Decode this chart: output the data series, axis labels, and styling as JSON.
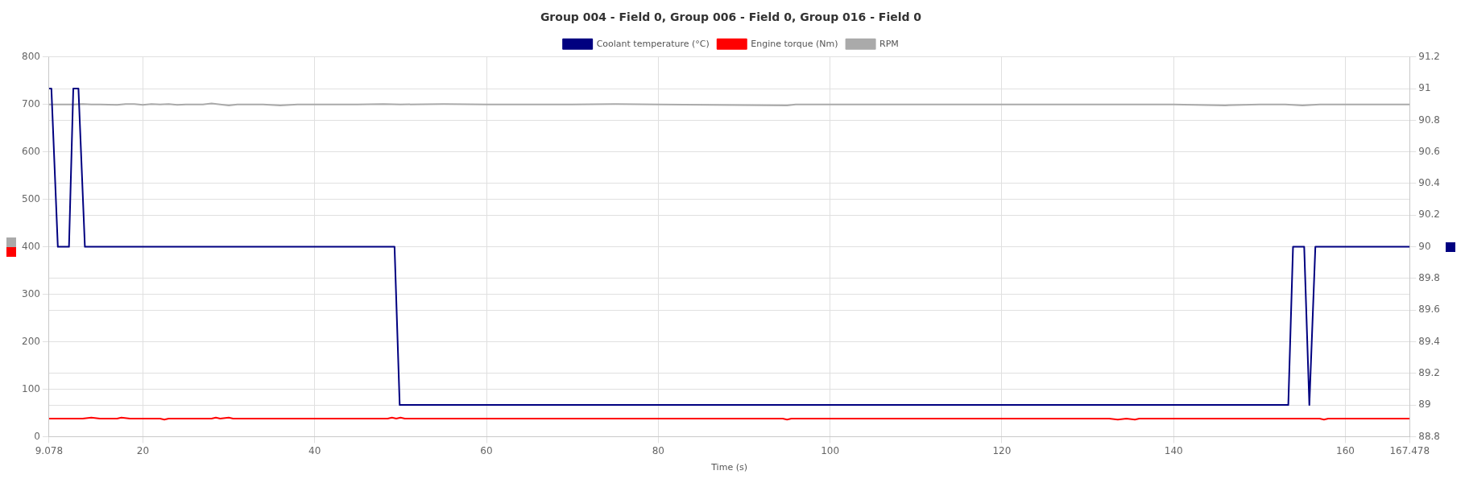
{
  "chart_data": {
    "type": "line",
    "title": "Group 004 - Field 0, Group 006 - Field 0, Group 016 - Field 0",
    "xlabel": "Time (s)",
    "legend": "top",
    "grid": true,
    "marker": "none",
    "line_style": "solid",
    "xlim": [
      9.078,
      167.478
    ],
    "xticks": [
      9.078,
      20,
      40,
      60,
      80,
      100,
      120,
      140,
      160,
      167.478
    ],
    "ylim": [
      0,
      800
    ],
    "yticks": [
      0,
      100,
      200,
      300,
      400,
      500,
      600,
      700,
      800
    ],
    "y2lim": [
      88.8,
      91.2
    ],
    "y2ticks": [
      88.8,
      89,
      89.2,
      89.4,
      89.6,
      89.8,
      90,
      90.2,
      90.4,
      90.6,
      90.8,
      91,
      91.2
    ],
    "series": [
      {
        "name": "Coolant temperature (°C)",
        "color": "#000080",
        "axis": "y2",
        "x": [
          9.078,
          9.35,
          10.1,
          11.4,
          11.9,
          12.5,
          13.25,
          49.3,
          49.9,
          153.35,
          153.9,
          155.2,
          155.8,
          156.5,
          167.478
        ],
        "values": [
          91,
          91,
          90,
          90,
          91,
          91,
          90,
          90,
          89,
          89,
          90,
          90,
          89,
          90,
          90
        ]
      },
      {
        "name": "Engine torque (Nm)",
        "color": "#ff0000",
        "x": [
          9.078,
          13,
          14,
          15,
          17,
          17.5,
          18.5,
          22,
          22.5,
          23,
          28,
          28.5,
          29,
          30,
          30.5,
          48.5,
          49,
          49.5,
          50,
          50.5,
          94.5,
          95,
          95.5,
          132.5,
          133.5,
          134.5,
          135.5,
          136,
          157,
          157.5,
          158,
          167.478
        ],
        "values": [
          38,
          38,
          40,
          38,
          38,
          40,
          38,
          38,
          36,
          38,
          38,
          40,
          38,
          40,
          38,
          38,
          40,
          38,
          40,
          38,
          38,
          36,
          38,
          38,
          36,
          38,
          36,
          38,
          38,
          36,
          38,
          38
        ]
      },
      {
        "name": "RPM",
        "color": "#aaaaaa",
        "x": [
          9.078,
          12,
          13,
          14,
          15,
          17,
          18,
          19,
          20,
          21,
          22,
          23,
          24,
          25,
          26,
          27,
          28,
          29,
          30,
          31,
          32,
          33,
          34,
          36,
          38,
          40,
          45,
          48,
          50,
          55,
          60,
          70,
          75,
          80,
          95,
          96,
          100,
          120,
          140,
          146,
          150,
          153,
          155,
          157,
          160,
          167.478
        ],
        "values": [
          700,
          700,
          701,
          700,
          700,
          699,
          701,
          701,
          699,
          701,
          700,
          701,
          699,
          700,
          700,
          700,
          702,
          700,
          698,
          700,
          700,
          700,
          700,
          698,
          700,
          700,
          700,
          701,
          700,
          701,
          700,
          700,
          701,
          700,
          698,
          700,
          700,
          700,
          700,
          698,
          700,
          700,
          698,
          700,
          700,
          700
        ]
      }
    ]
  }
}
